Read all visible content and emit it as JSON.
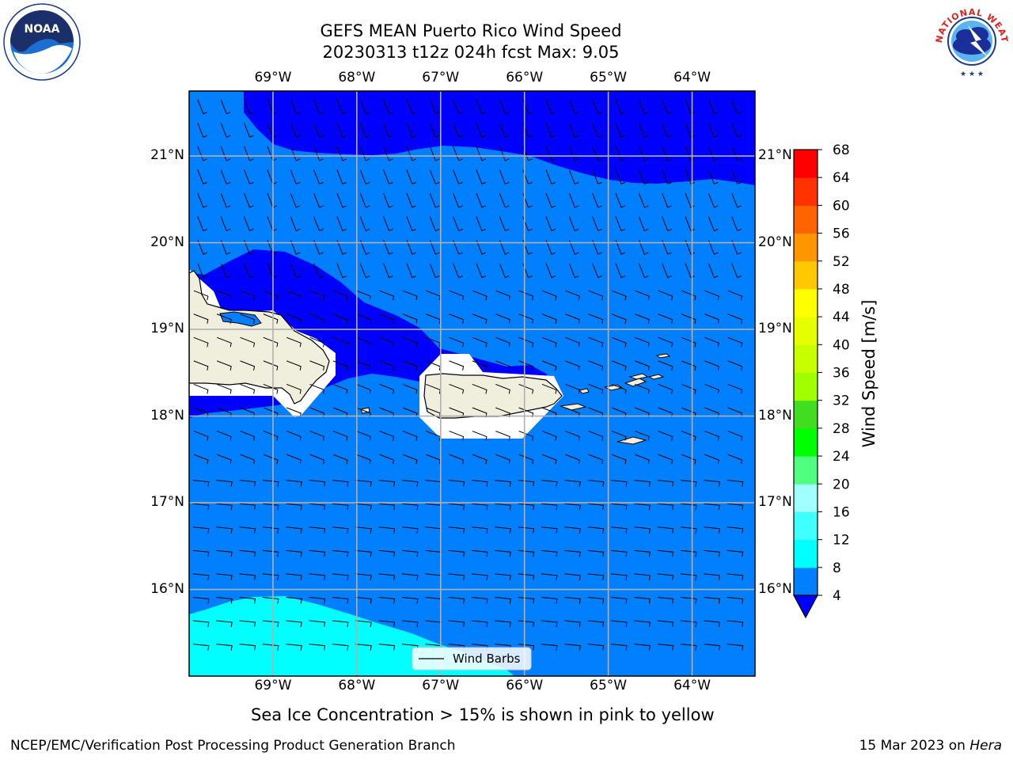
{
  "title_line1": "GEFS MEAN Puerto Rico Wind Speed",
  "title_line2": "20230313 t12z 024h fcst   Max: 9.05",
  "subtitle": "Sea Ice Concentration > 15% is shown in pink to yellow",
  "footer_left": "NCEP/EMC/Verification Post Processing Product Generation Branch",
  "footer_right_prefix": "15 Mar 2023 on ",
  "footer_right_host": "Hera",
  "logos": {
    "left": {
      "icon": "noaa-logo-icon",
      "text": "NOAA"
    },
    "right": {
      "icon": "nws-logo-icon",
      "text": "NATIONAL WEATHER SERVICE"
    }
  },
  "chart_data": {
    "type": "heatmap",
    "projection": "map",
    "lon_range": [
      -70.0,
      -63.25
    ],
    "lat_range": [
      15.0,
      21.75
    ],
    "lon_ticks": [
      -69,
      -68,
      -67,
      -66,
      -65,
      -64
    ],
    "lon_tick_labels": [
      "69°W",
      "68°W",
      "67°W",
      "66°W",
      "65°W",
      "64°W"
    ],
    "lat_ticks": [
      21,
      20,
      19,
      18,
      17,
      16
    ],
    "lat_tick_labels": [
      "21°N",
      "20°N",
      "19°N",
      "18°N",
      "17°N",
      "16°N"
    ],
    "grid": true,
    "colorbar": {
      "label": "Wind Speed [m/s]",
      "levels": [
        4,
        8,
        12,
        16,
        20,
        24,
        28,
        32,
        36,
        40,
        44,
        48,
        52,
        56,
        60,
        64,
        68
      ],
      "tick_labels": [
        "4",
        "8",
        "12",
        "16",
        "20",
        "24",
        "28",
        "32",
        "36",
        "40",
        "44",
        "48",
        "52",
        "56",
        "60",
        "64",
        "68"
      ],
      "colors": [
        "#0080ff",
        "#00ffff",
        "#40ffff",
        "#a0ffff",
        "#50ff80",
        "#00ff00",
        "#40dd20",
        "#a0ff00",
        "#c8ff00",
        "#e6ff00",
        "#ffff00",
        "#ffc800",
        "#ff9600",
        "#ff6400",
        "#ff3200",
        "#ff0000"
      ],
      "under_color": "#0000ff",
      "extend": "min"
    },
    "field_colors": {
      "lt4": "#0000ff",
      "4to8": "#0080ff",
      "8to12": "#00ffff",
      "land": "#f0eedc"
    },
    "max_wind_speed": 9.05,
    "legend": {
      "label": "Wind Barbs",
      "placement": "bottom-center"
    }
  }
}
